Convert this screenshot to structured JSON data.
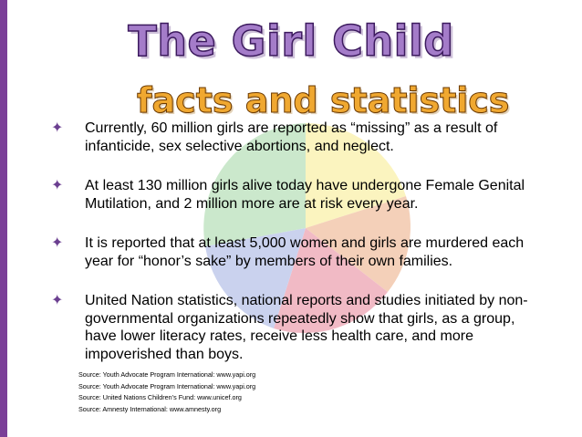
{
  "header": {
    "title": "The Girl Child",
    "subtitle": "facts and statistics"
  },
  "bullets": [
    "Currently, 60 million girls are reported as “missing” as a result of infanticide, sex selective abortions, and neglect.",
    "At least 130 million girls alive today have undergone Female Genital Mutilation, and 2 million more are at risk every year.",
    "It is reported that at least 5,000 women and girls are murdered each year for “honor’s sake” by members of their own families.",
    "United Nation statistics, national reports and studies initiated by non-governmental organizations repeatedly show that girls, as a group, have lower literacy rates, receive less health care, and more impoverished than boys."
  ],
  "sources": [
    "Source: Youth Advocate Program International: www.yapi.org",
    "Source: Youth Advocate Program International: www.yapi.org",
    "Source: United Nations Children’s Fund: www.unicef.org",
    "Source: Amnesty International: www.amnesty.org"
  ]
}
